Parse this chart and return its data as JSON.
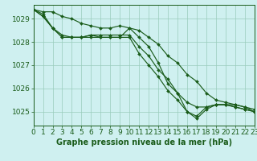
{
  "title": "Graphe pression niveau de la mer (hPa)",
  "background_color": "#cff0f0",
  "grid_color": "#99ccbb",
  "line_color": "#1a5c1a",
  "xlim": [
    0,
    23
  ],
  "ylim": [
    1024.4,
    1029.6
  ],
  "yticks": [
    1025,
    1026,
    1027,
    1028,
    1029
  ],
  "xticks": [
    0,
    1,
    2,
    3,
    4,
    5,
    6,
    7,
    8,
    9,
    10,
    11,
    12,
    13,
    14,
    15,
    16,
    17,
    18,
    19,
    20,
    21,
    22,
    23
  ],
  "series": [
    {
      "x": [
        0,
        1,
        2,
        3,
        4,
        5,
        6,
        7,
        8,
        9,
        10,
        11,
        12,
        13,
        14,
        15,
        16,
        17,
        18,
        19,
        20,
        21,
        22,
        23
      ],
      "y": [
        1029.4,
        1029.3,
        1029.3,
        1029.1,
        1029.0,
        1028.8,
        1028.7,
        1028.6,
        1028.6,
        1028.7,
        1028.6,
        1028.5,
        1028.2,
        1027.9,
        1027.4,
        1027.1,
        1026.6,
        1026.3,
        1025.8,
        1025.5,
        1025.4,
        1025.3,
        1025.2,
        1025.1
      ]
    },
    {
      "x": [
        0,
        1,
        2,
        3,
        4,
        5,
        6,
        7,
        8,
        9,
        10,
        11,
        12,
        13,
        14,
        15,
        16,
        17,
        18,
        19,
        20,
        21,
        22,
        23
      ],
      "y": [
        1029.4,
        1029.2,
        1028.6,
        1028.2,
        1028.2,
        1028.2,
        1028.2,
        1028.2,
        1028.2,
        1028.2,
        1028.6,
        1028.2,
        1027.8,
        1027.1,
        1026.2,
        1025.8,
        1025.0,
        1024.7,
        1025.1,
        1025.3,
        1025.3,
        1025.2,
        1025.1,
        1025.0
      ]
    },
    {
      "x": [
        0,
        1,
        2,
        3,
        4,
        5,
        6,
        7,
        8,
        9,
        10,
        11,
        12,
        13,
        14,
        15,
        16,
        17,
        18,
        19,
        20,
        21,
        22,
        23
      ],
      "y": [
        1029.4,
        1029.1,
        1028.6,
        1028.2,
        1028.2,
        1028.2,
        1028.3,
        1028.2,
        1028.2,
        1028.2,
        1028.2,
        1027.5,
        1027.0,
        1026.5,
        1025.9,
        1025.5,
        1025.0,
        1024.8,
        1025.2,
        1025.3,
        1025.3,
        1025.2,
        1025.1,
        1025.0
      ]
    },
    {
      "x": [
        0,
        1,
        2,
        3,
        4,
        5,
        6,
        7,
        8,
        9,
        10,
        11,
        12,
        13,
        14,
        15,
        16,
        17,
        18,
        19,
        20,
        21,
        22,
        23
      ],
      "y": [
        1029.4,
        1029.1,
        1028.6,
        1028.3,
        1028.2,
        1028.2,
        1028.3,
        1028.3,
        1028.3,
        1028.3,
        1028.3,
        1027.8,
        1027.4,
        1026.8,
        1026.4,
        1025.8,
        1025.4,
        1025.2,
        1025.2,
        1025.3,
        1025.3,
        1025.3,
        1025.2,
        1025.0
      ]
    }
  ],
  "tick_fontsize": 6.5,
  "title_fontsize": 7,
  "marker": "D",
  "marker_size": 2.0,
  "line_width": 0.85
}
